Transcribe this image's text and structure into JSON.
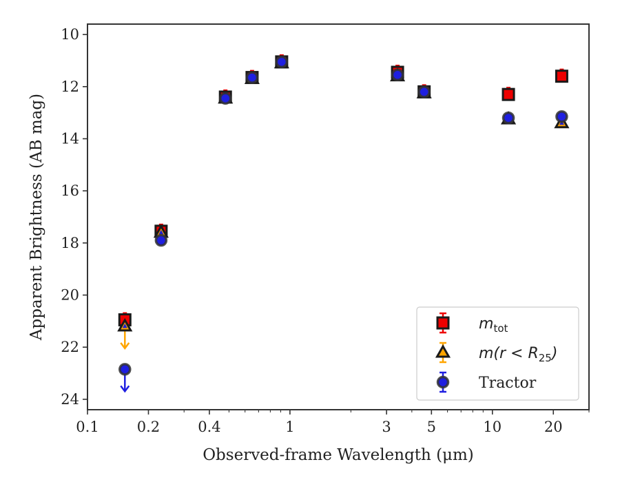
{
  "chart_data": {
    "type": "scatter",
    "xlabel": "Observed-frame Wavelength (μm)",
    "ylabel": "Apparent Brightness (AB mag)",
    "x_scale": "log",
    "xlim": [
      0.1,
      30
    ],
    "ylim": [
      24.4,
      9.6
    ],
    "y_inverted": true,
    "x_ticks": [
      0.1,
      0.2,
      0.4,
      1,
      3,
      5,
      10,
      20
    ],
    "x_tick_labels": [
      "0.1",
      "0.2",
      "0.4",
      "1",
      "3",
      "5",
      "10",
      "20"
    ],
    "y_ticks": [
      10,
      12,
      14,
      16,
      18,
      20,
      22,
      24
    ],
    "y_tick_labels": [
      "10",
      "12",
      "14",
      "16",
      "18",
      "20",
      "22",
      "24"
    ],
    "grid": false,
    "legend_position": "bottom-right",
    "series": [
      {
        "name": "m_tot",
        "marker": "square",
        "color": "#ee0000",
        "edge_color": "#1a1a1a",
        "x": [
          0.153,
          0.231,
          0.48,
          0.65,
          0.91,
          3.4,
          4.6,
          12.0,
          22.0
        ],
        "y": [
          20.95,
          17.55,
          12.4,
          11.65,
          11.05,
          11.45,
          12.2,
          12.3,
          11.6
        ],
        "upper_limit": [
          false,
          false,
          false,
          false,
          false,
          false,
          false,
          false,
          false
        ]
      },
      {
        "name": "m(r<R25)",
        "marker": "triangle",
        "color": "#ffa500",
        "edge_color": "#1a1a1a",
        "x": [
          0.153,
          0.231,
          0.48,
          0.65,
          0.91,
          3.4,
          4.6,
          12.0,
          22.0
        ],
        "y": [
          21.2,
          17.6,
          12.45,
          11.7,
          11.1,
          11.6,
          12.25,
          13.25,
          13.4
        ],
        "upper_limit": [
          true,
          false,
          false,
          false,
          false,
          false,
          false,
          false,
          false
        ]
      },
      {
        "name": "Tractor",
        "marker": "circle",
        "color": "#1f1fe0",
        "edge_color": "#333333",
        "x": [
          0.153,
          0.231,
          0.48,
          0.65,
          0.91,
          3.4,
          4.6,
          12.0,
          22.0
        ],
        "y": [
          22.85,
          17.9,
          12.45,
          11.65,
          11.05,
          11.55,
          12.2,
          13.2,
          13.15
        ],
        "upper_limit": [
          true,
          false,
          false,
          false,
          false,
          false,
          false,
          false,
          false
        ]
      }
    ]
  },
  "legend": {
    "entries": [
      {
        "label_main": "m",
        "label_sub": "tot"
      },
      {
        "label_main": "m(r < R",
        "label_sub": "25",
        "label_end": ")"
      },
      {
        "label_main": "Tractor"
      }
    ]
  }
}
